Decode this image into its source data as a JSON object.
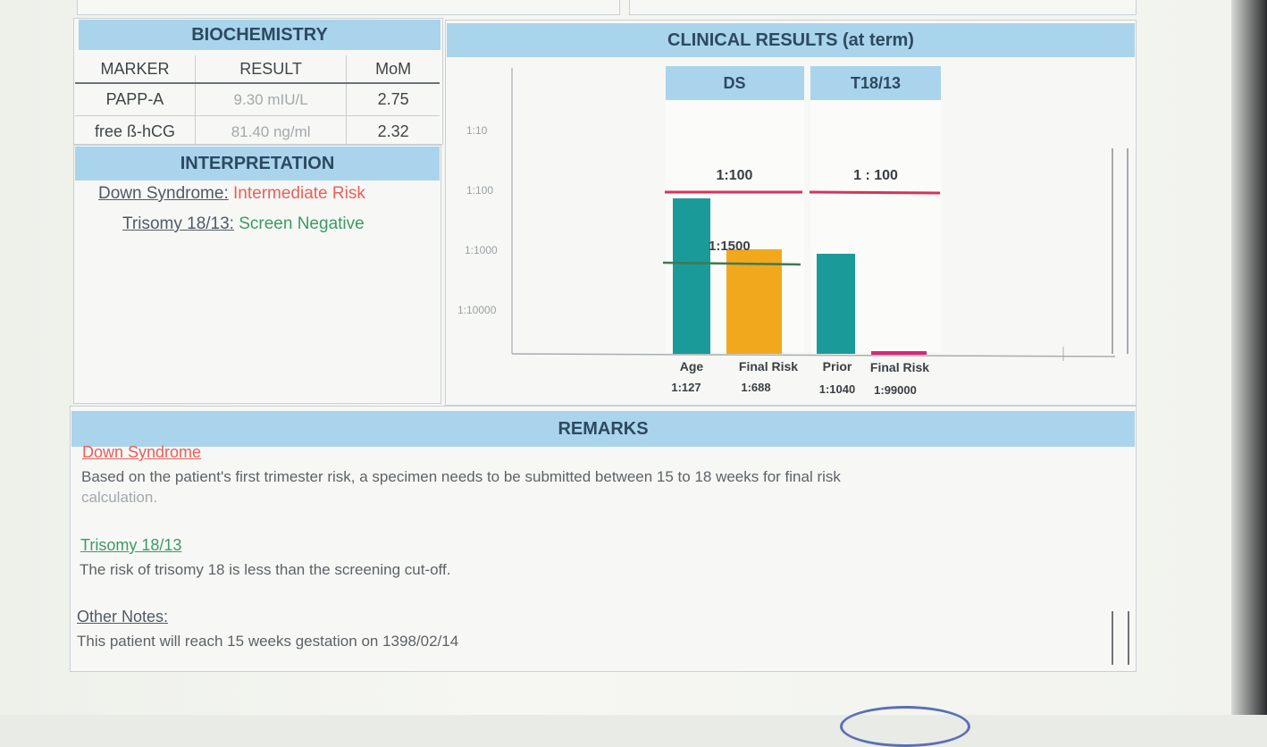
{
  "biochemistry": {
    "title": "BIOCHEMISTRY",
    "columns": [
      "MARKER",
      "RESULT",
      "MoM"
    ],
    "rows": [
      {
        "marker": "PAPP-A",
        "result": "9.30 mIU/L",
        "mom": "2.75"
      },
      {
        "marker": "free ß-hCG",
        "result": "81.40 ng/ml",
        "mom": "2.32"
      }
    ]
  },
  "interpretation": {
    "title": "INTERPRETATION",
    "items": [
      {
        "label": "Down Syndrome:",
        "value": "Intermediate Risk"
      },
      {
        "label": "Trisomy 18/13:",
        "value": "Screen Negative"
      }
    ]
  },
  "clinical": {
    "title": "CLINICAL RESULTS (at term)"
  },
  "chart_data": {
    "type": "bar",
    "title": "CLINICAL RESULTS (at term)",
    "y_scale": "log (risk 1:N)",
    "y_ticks": [
      "1:10",
      "1:100",
      "1:1000",
      "1:10000"
    ],
    "panels": [
      {
        "name": "DS",
        "cutoff_label": "1:100",
        "secondary_line_label": "1:1500",
        "bars": [
          {
            "label": "Age",
            "risk_label": "1:127",
            "denominator": 127,
            "color": "#1b9a9a"
          },
          {
            "label": "Final Risk",
            "risk_label": "1:688",
            "denominator": 688,
            "color": "#f2a81d"
          }
        ]
      },
      {
        "name": "T18/13",
        "cutoff_label": "1 : 100",
        "bars": [
          {
            "label": "Prior",
            "risk_label": "1:1040",
            "denominator": 1040,
            "color": "#1b9a9a"
          },
          {
            "label": "Final Risk",
            "risk_label": "1:99000",
            "denominator": 99000,
            "color": "#d6287a"
          }
        ]
      }
    ],
    "colors": {
      "cutoff_line": "#d6345a",
      "secondary_line": "#3e7a52"
    }
  },
  "remarks": {
    "title": "REMARKS",
    "sections": [
      {
        "heading": "Down Syndrome",
        "lines": [
          "Based on the patient's first trimester risk, a specimen needs to be submitted between 15 to 18 weeks for final risk",
          "calculation."
        ]
      },
      {
        "heading": "Trisomy 18/13",
        "lines": [
          "The risk of trisomy 18 is less than the screening cut-off."
        ]
      },
      {
        "heading": "Other Notes:",
        "lines": [
          "This patient will reach 15 weeks gestation on 1398/02/14"
        ]
      }
    ]
  }
}
